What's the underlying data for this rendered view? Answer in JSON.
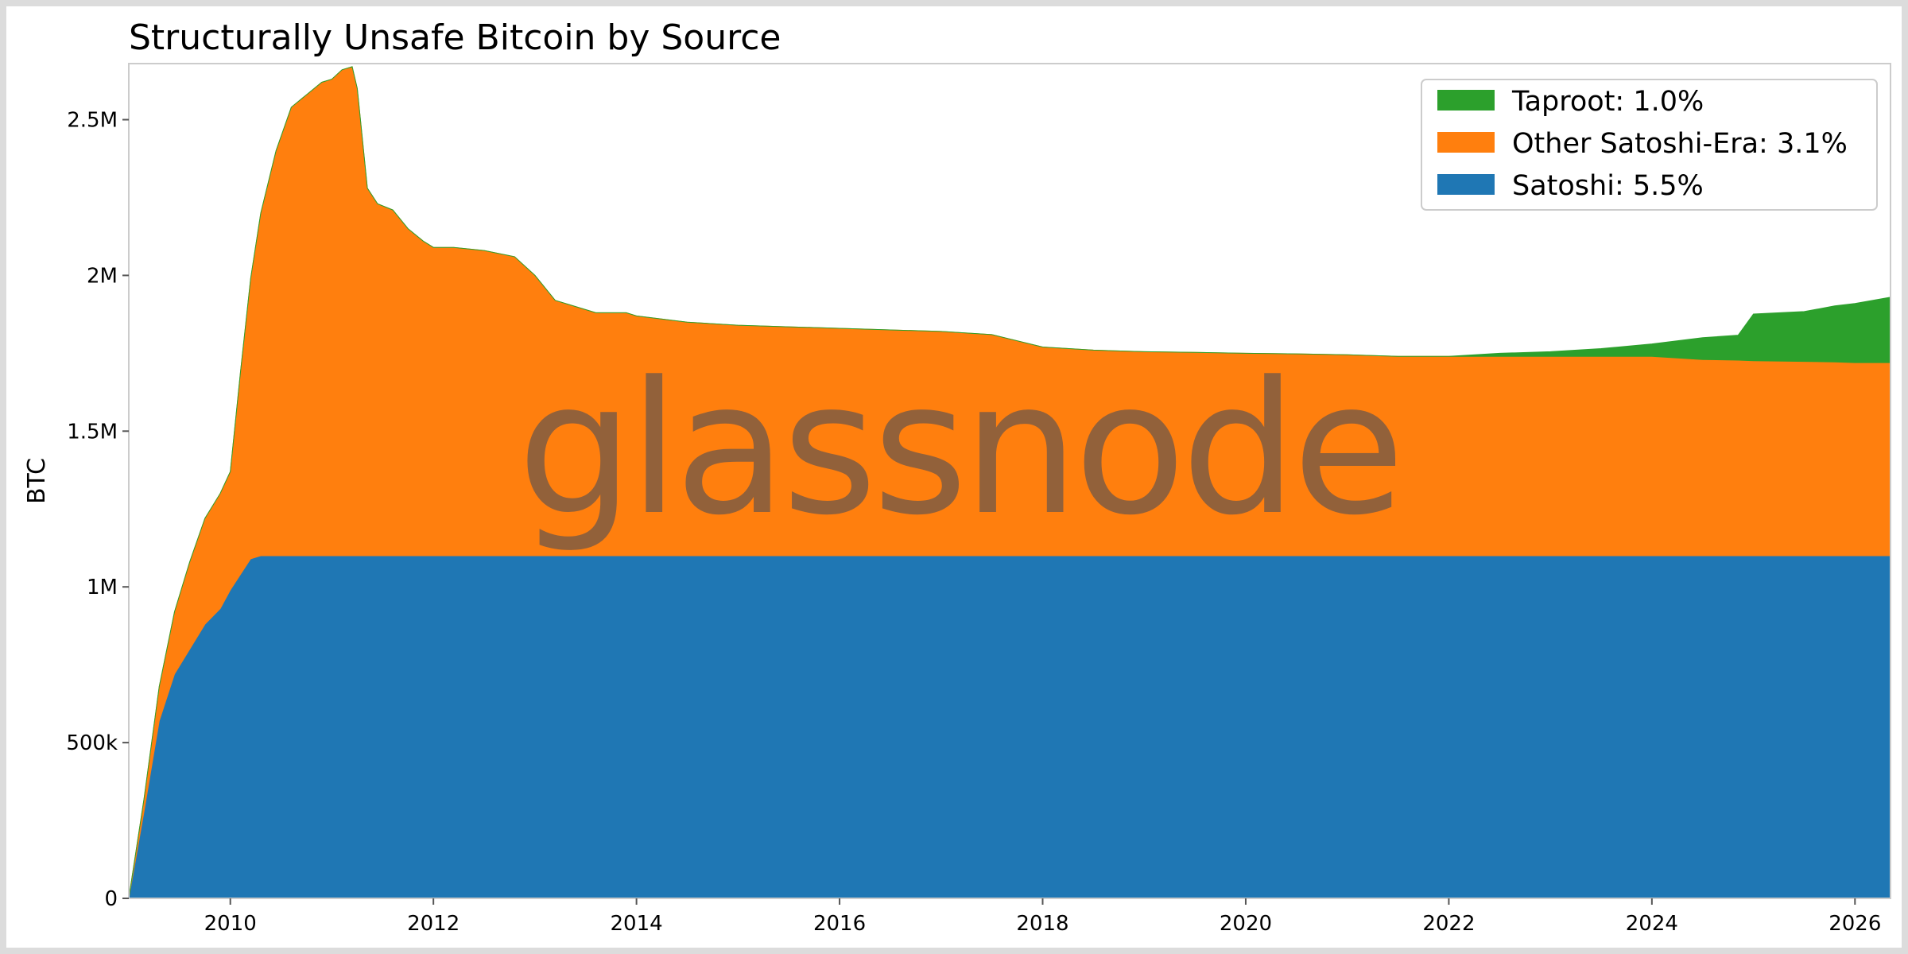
{
  "watermark": "glassnode",
  "chart_data": {
    "type": "area",
    "stacked": true,
    "title": "Structurally Unsafe Bitcoin by Source",
    "xlabel": "",
    "ylabel": "BTC",
    "xlim": [
      2009.0,
      2026.35
    ],
    "ylim": [
      0,
      2680000
    ],
    "xticks": [
      {
        "value": 2010,
        "label": "2010"
      },
      {
        "value": 2012,
        "label": "2012"
      },
      {
        "value": 2014,
        "label": "2014"
      },
      {
        "value": 2016,
        "label": "2016"
      },
      {
        "value": 2018,
        "label": "2018"
      },
      {
        "value": 2020,
        "label": "2020"
      },
      {
        "value": 2022,
        "label": "2022"
      },
      {
        "value": 2024,
        "label": "2024"
      },
      {
        "value": 2026,
        "label": "2026"
      }
    ],
    "yticks": [
      {
        "value": 0,
        "label": "0"
      },
      {
        "value": 500000,
        "label": "500k"
      },
      {
        "value": 1000000,
        "label": "1M"
      },
      {
        "value": 1500000,
        "label": "1.5M"
      },
      {
        "value": 2000000,
        "label": "2M"
      },
      {
        "value": 2500000,
        "label": "2.5M"
      }
    ],
    "grid": false,
    "legend_position": "top-right",
    "x": [
      2009.0,
      2009.15,
      2009.3,
      2009.45,
      2009.6,
      2009.75,
      2009.9,
      2010.0,
      2010.1,
      2010.2,
      2010.3,
      2010.45,
      2010.6,
      2010.75,
      2010.9,
      2011.0,
      2011.1,
      2011.2,
      2011.25,
      2011.35,
      2011.45,
      2011.6,
      2011.75,
      2011.9,
      2012.0,
      2012.2,
      2012.5,
      2012.8,
      2013.0,
      2013.2,
      2013.4,
      2013.6,
      2013.9,
      2014.0,
      2014.5,
      2015.0,
      2015.5,
      2016.0,
      2016.5,
      2017.0,
      2017.5,
      2018.0,
      2018.5,
      2019.0,
      2019.5,
      2020.0,
      2020.5,
      2021.0,
      2021.5,
      2022.0,
      2022.5,
      2023.0,
      2023.5,
      2024.0,
      2024.5,
      2024.85,
      2025.0,
      2025.5,
      2025.8,
      2026.0,
      2026.35
    ],
    "series": [
      {
        "name": "Satoshi: 5.5%",
        "color": "#1f77b4",
        "values": [
          0,
          280000,
          570000,
          720000,
          800000,
          880000,
          930000,
          990000,
          1040000,
          1090000,
          1100000,
          1100000,
          1100000,
          1100000,
          1100000,
          1100000,
          1100000,
          1100000,
          1100000,
          1100000,
          1100000,
          1100000,
          1100000,
          1100000,
          1100000,
          1100000,
          1100000,
          1100000,
          1100000,
          1100000,
          1100000,
          1100000,
          1100000,
          1100000,
          1100000,
          1100000,
          1100000,
          1100000,
          1100000,
          1100000,
          1100000,
          1100000,
          1100000,
          1100000,
          1100000,
          1100000,
          1100000,
          1100000,
          1100000,
          1100000,
          1100000,
          1100000,
          1100000,
          1100000,
          1100000,
          1100000,
          1100000,
          1100000,
          1100000,
          1100000,
          1100000
        ]
      },
      {
        "name": "Other Satoshi-Era: 3.1%",
        "color": "#ff7f0e",
        "values": [
          0,
          40000,
          110000,
          200000,
          280000,
          340000,
          370000,
          380000,
          650000,
          900000,
          1100000,
          1300000,
          1440000,
          1480000,
          1520000,
          1530000,
          1560000,
          1570000,
          1500000,
          1180000,
          1130000,
          1110000,
          1050000,
          1010000,
          990000,
          990000,
          980000,
          960000,
          900000,
          820000,
          800000,
          780000,
          780000,
          770000,
          750000,
          740000,
          735000,
          730000,
          725000,
          720000,
          710000,
          670000,
          660000,
          655000,
          653000,
          650000,
          648000,
          645000,
          640000,
          640000,
          640000,
          640000,
          640000,
          640000,
          630000,
          628000,
          626000,
          624000,
          622000,
          620000,
          620000
        ]
      },
      {
        "name": "Taproot: 1.0%",
        "color": "#2ca02c",
        "values": [
          0,
          0,
          0,
          0,
          0,
          0,
          0,
          0,
          0,
          0,
          0,
          0,
          0,
          0,
          0,
          0,
          0,
          0,
          0,
          0,
          0,
          0,
          0,
          0,
          0,
          0,
          0,
          0,
          0,
          0,
          0,
          0,
          0,
          0,
          0,
          0,
          0,
          0,
          0,
          0,
          0,
          0,
          0,
          0,
          0,
          0,
          0,
          0,
          0,
          0,
          10000,
          15000,
          25000,
          40000,
          70000,
          80000,
          150000,
          160000,
          180000,
          190000,
          210000
        ]
      }
    ],
    "legend_order": [
      2,
      1,
      0
    ]
  }
}
